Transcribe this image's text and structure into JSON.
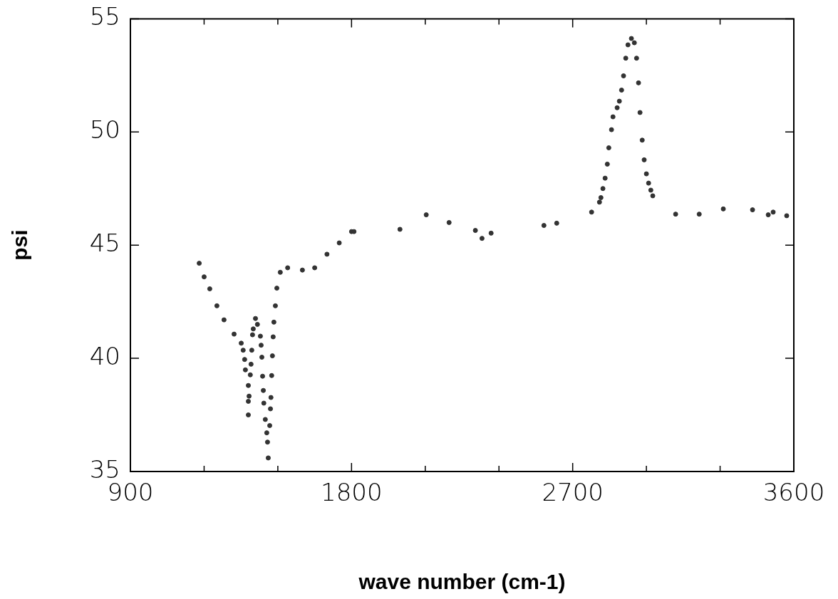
{
  "chart_data": {
    "type": "scatter",
    "xlabel": "wave number (cm-1)",
    "ylabel": "psi",
    "marker": "circle",
    "xlim": [
      900,
      3600
    ],
    "ylim": [
      35,
      55
    ],
    "xticks": [
      900,
      {
        "value": 1200,
        "label": null
      },
      {
        "value": 1500,
        "label": null
      },
      1800,
      {
        "value": 2100,
        "label": null
      },
      {
        "value": 2400,
        "label": null
      },
      2700,
      {
        "value": 3000,
        "label": null
      },
      {
        "value": 3300,
        "label": null
      },
      3600
    ],
    "yticks": [
      35,
      40,
      45,
      50,
      55
    ],
    "series": [
      {
        "color": "#333333",
        "x": [
          1180,
          1200,
          1223,
          1252,
          1281,
          1322,
          1351,
          1359,
          1365,
          1368,
          1380,
          1380,
          1380,
          1383,
          1388,
          1391,
          1394,
          1397,
          1400,
          1409,
          1417,
          1429,
          1432,
          1435,
          1438,
          1441,
          1443,
          1449,
          1455,
          1458,
          1461,
          1467,
          1470,
          1472,
          1475,
          1478,
          1481,
          1484,
          1490,
          1496,
          1510,
          1540,
          1600,
          1650,
          1700,
          1750,
          1800,
          1810
        ],
        "values": [
          44.2,
          43.6,
          43.07,
          42.32,
          41.7,
          41.07,
          40.67,
          40.36,
          39.95,
          39.49,
          38.8,
          38.1,
          37.5,
          38.33,
          39.27,
          39.74,
          40.36,
          41.04,
          41.3,
          41.76,
          41.5,
          40.98,
          40.58,
          40.05,
          39.21,
          38.58,
          38.02,
          37.3,
          36.71,
          36.3,
          35.6,
          37.03,
          37.77,
          38.27,
          39.24,
          40.11,
          40.95,
          41.6,
          42.32,
          43.1,
          43.8,
          44.0,
          43.9,
          44.0,
          44.6,
          45.1,
          45.6,
          45.6
        ]
      },
      {
        "color": "#333333",
        "x": [
          1997,
          2104,
          2197,
          2304,
          2331,
          2368,
          2583,
          2635,
          2777,
          2809,
          2815,
          2823,
          2832,
          2841,
          2847,
          2858,
          2864,
          2881,
          2890,
          2899,
          2907,
          2916,
          2925,
          2939,
          2951,
          2960,
          2968,
          2974,
          2983,
          2991,
          3000,
          3009,
          3018,
          3026,
          3119,
          3215,
          3313,
          3432,
          3496,
          3516,
          3571
        ],
        "values": [
          45.7,
          46.34,
          46.0,
          45.65,
          45.3,
          45.53,
          45.87,
          45.97,
          46.46,
          46.9,
          47.1,
          47.5,
          47.96,
          48.58,
          49.3,
          50.1,
          50.67,
          51.07,
          51.36,
          51.85,
          52.48,
          53.26,
          53.85,
          54.13,
          53.94,
          53.26,
          52.17,
          50.86,
          49.64,
          48.77,
          48.15,
          47.74,
          47.43,
          47.18,
          46.37,
          46.37,
          46.6,
          46.56,
          46.34,
          46.46,
          46.3
        ]
      }
    ]
  }
}
